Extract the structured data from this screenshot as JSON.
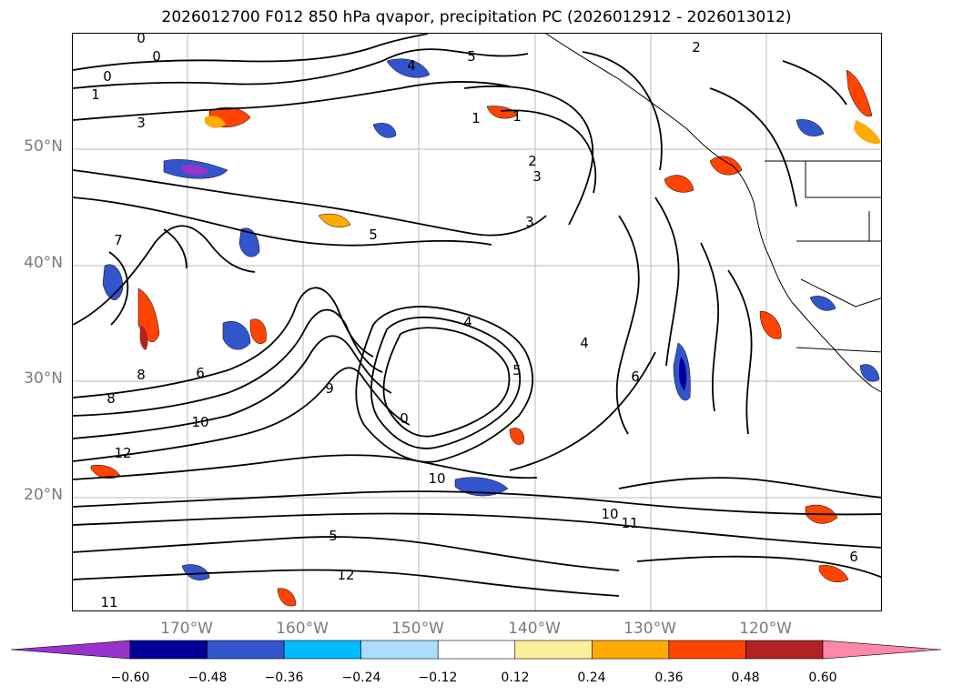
{
  "title": "2026012700 F012 850 hPa qvapor, precipitation PC (2026012912 - 2026013012)",
  "map": {
    "lat_labels": [
      "50°N",
      "40°N",
      "30°N",
      "20°N"
    ],
    "lon_labels": [
      "170°W",
      "160°W",
      "150°W",
      "140°W",
      "130°W",
      "120°W"
    ],
    "contour_labels": [
      "0",
      "0",
      "0",
      "1",
      "1",
      "1",
      "2",
      "2",
      "3",
      "3",
      "3",
      "4",
      "4",
      "4",
      "5",
      "5",
      "5",
      "5",
      "6",
      "6",
      "6",
      "7",
      "8",
      "8",
      "9",
      "0",
      "10",
      "10",
      "10",
      "11",
      "11",
      "12",
      "12"
    ]
  },
  "colorbar": {
    "colors": [
      "#9933cc",
      "#000099",
      "#3355cc",
      "#00bbff",
      "#aaddff",
      "#ffffff",
      "#ffee99",
      "#ffaa00",
      "#ff4400",
      "#b22222",
      "#ff88aa"
    ],
    "tick_labels": [
      "−0.60",
      "−0.48",
      "−0.36",
      "−0.24",
      "−0.12",
      "0.12",
      "0.24",
      "0.36",
      "0.48",
      "0.60"
    ]
  }
}
